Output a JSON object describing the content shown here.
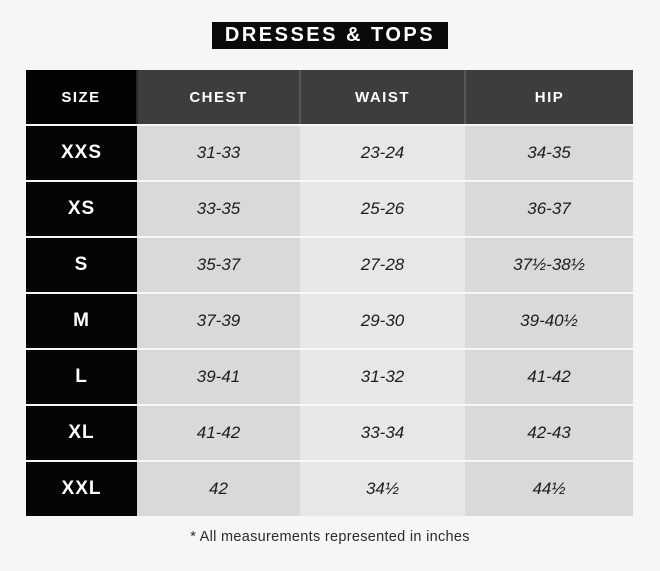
{
  "title": "DRESSES & TOPS",
  "colors": {
    "page_background": "#f6f6f6",
    "banner_black": "#0a0a0a",
    "header_gray": "#3d3d3d",
    "size_column_black": "#050505",
    "cell_gray": "#d9d9d9",
    "cell_light_gray": "#e7e7e7",
    "value_text": "#1c1c1c"
  },
  "table": {
    "headers": [
      "SIZE",
      "CHEST",
      "WAIST",
      "HIP"
    ],
    "rows": [
      {
        "size": "XXS",
        "chest": "31-33",
        "waist": "23-24",
        "hip": "34-35"
      },
      {
        "size": "XS",
        "chest": "33-35",
        "waist": "25-26",
        "hip": "36-37"
      },
      {
        "size": "S",
        "chest": "35-37",
        "waist": "27-28",
        "hip": "37½-38½"
      },
      {
        "size": "M",
        "chest": "37-39",
        "waist": "29-30",
        "hip": "39-40½"
      },
      {
        "size": "L",
        "chest": "39-41",
        "waist": "31-32",
        "hip": "41-42"
      },
      {
        "size": "XL",
        "chest": "41-42",
        "waist": "33-34",
        "hip": "42-43"
      },
      {
        "size": "XXL",
        "chest": "42",
        "waist": "34½",
        "hip": "44½"
      }
    ]
  },
  "footnote": "* All measurements represented in inches",
  "chart_data": {
    "type": "table",
    "title": "DRESSES & TOPS",
    "columns": [
      "SIZE",
      "CHEST",
      "WAIST",
      "HIP"
    ],
    "rows": [
      [
        "XXS",
        "31-33",
        "23-24",
        "34-35"
      ],
      [
        "XS",
        "33-35",
        "25-26",
        "36-37"
      ],
      [
        "S",
        "35-37",
        "27-28",
        "37½-38½"
      ],
      [
        "M",
        "37-39",
        "29-30",
        "39-40½"
      ],
      [
        "L",
        "39-41",
        "31-32",
        "41-42"
      ],
      [
        "XL",
        "41-42",
        "33-34",
        "42-43"
      ],
      [
        "XXL",
        "42",
        "34½",
        "44½"
      ]
    ],
    "units_note": "* All measurements represented in inches"
  }
}
